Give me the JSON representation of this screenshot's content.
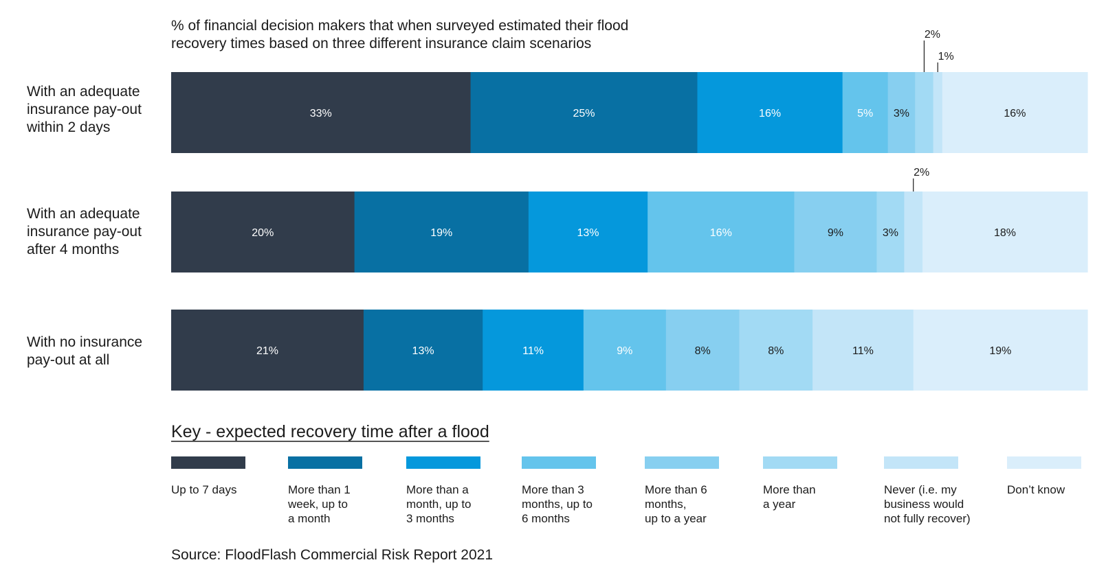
{
  "chart_data": {
    "type": "bar",
    "orientation": "horizontal",
    "stacked": true,
    "title": "% of financial decision makers that when surveyed estimated their flood recovery times based on three different insurance claim scenarios",
    "title_lines": [
      "% of financial decision makers that when surveyed estimated their flood",
      "recovery times based on three different insurance claim scenarios"
    ],
    "xlim": [
      0,
      100
    ],
    "grid": false,
    "legend_placement": "bottom",
    "legend_title": "Key - expected recovery time after a flood",
    "categories": [
      "With an adequate insurance pay-out within 2 days",
      "With an adequate insurance pay-out after 4 months",
      "With no insurance pay-out at all"
    ],
    "category_label_lines": [
      [
        "With an adequate",
        "insurance pay-out",
        "within 2 days"
      ],
      [
        "With an adequate",
        "insurance pay-out",
        "after 4 months"
      ],
      [
        "With no insurance",
        "pay-out at all"
      ]
    ],
    "series": [
      {
        "name": "Up to 7 days",
        "name_lines": [
          "Up to 7 days"
        ],
        "color": "#313c4b",
        "label_color": "#ffffff",
        "values": [
          33,
          20,
          21
        ],
        "labels": [
          "33%",
          "20%",
          "21%"
        ]
      },
      {
        "name": "More than 1 week, up to a month",
        "name_lines": [
          "More than 1",
          "week, up to",
          "a month"
        ],
        "color": "#0870a3",
        "label_color": "#ffffff",
        "values": [
          25,
          19,
          13
        ],
        "labels": [
          "25%",
          "19%",
          "13%"
        ]
      },
      {
        "name": "More than a month, up to 3 months",
        "name_lines": [
          "More than a",
          "month, up to",
          "3 months"
        ],
        "color": "#0598dc",
        "label_color": "#ffffff",
        "values": [
          16,
          13,
          11
        ],
        "labels": [
          "16%",
          "13%",
          "11%"
        ]
      },
      {
        "name": "More than 3 months, up to 6 months",
        "name_lines": [
          "More than 3",
          "months, up to",
          "6 months"
        ],
        "color": "#64c4ec",
        "label_color": "#ffffff",
        "values": [
          5,
          16,
          9
        ],
        "labels": [
          "5%",
          "16%",
          "9%"
        ]
      },
      {
        "name": "More than 6 months, up to a year",
        "name_lines": [
          "More than 6",
          "months,",
          "up to a year"
        ],
        "color": "#87cff0",
        "label_color": "#1b1b1b",
        "values": [
          3,
          9,
          8
        ],
        "labels": [
          "3%",
          "9%",
          "8%"
        ]
      },
      {
        "name": "More than a year",
        "name_lines": [
          "More than",
          "a year"
        ],
        "color": "#a2daf4",
        "label_color": "#1b1b1b",
        "values": [
          2,
          3,
          8
        ],
        "labels": [
          "",
          "3%",
          "8%"
        ]
      },
      {
        "name": "Never (i.e. my business would not fully recover)",
        "name_lines": [
          "Never (i.e. my",
          "business would",
          "not fully recover)"
        ],
        "color": "#c3e5f8",
        "label_color": "#1b1b1b",
        "values": [
          1,
          2,
          11
        ],
        "labels": [
          "",
          "",
          "11%"
        ]
      },
      {
        "name": "Don’t know",
        "name_lines": [
          "Don’t know"
        ],
        "color": "#daeefb",
        "label_color": "#1b1b1b",
        "values": [
          16,
          18,
          19
        ],
        "labels": [
          "16%",
          "18%",
          "19%"
        ]
      }
    ],
    "callouts": [
      {
        "row": 0,
        "series": 5,
        "text": "2%"
      },
      {
        "row": 0,
        "series": 6,
        "text": "1%"
      },
      {
        "row": 1,
        "series": 6,
        "text": "2%"
      }
    ],
    "source": "Source: FloodFlash Commercial Risk Report 2021"
  }
}
